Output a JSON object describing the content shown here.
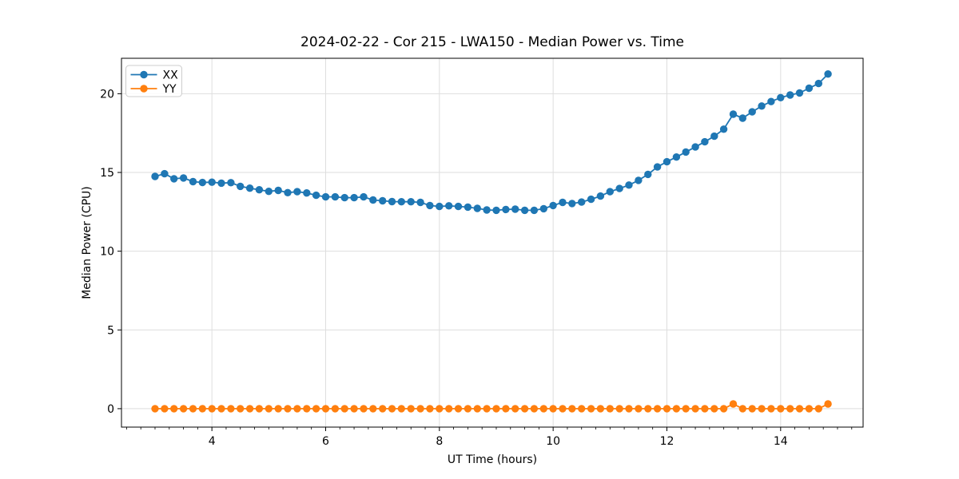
{
  "chart_data": {
    "type": "line",
    "title": "2024-02-22 - Cor 215 - LWA150 - Median Power vs. Time",
    "xlabel": "UT Time (hours)",
    "ylabel": "Median Power (CPU)",
    "xlim": [
      2.41,
      15.45
    ],
    "ylim": [
      -1.17,
      22.25
    ],
    "x_major_ticks": [
      4,
      6,
      8,
      10,
      12,
      14
    ],
    "x_minor_tick_step": 0.25,
    "y_major_ticks": [
      0,
      5,
      10,
      15,
      20
    ],
    "grid": "major",
    "grid_color": "#dedede",
    "legend_position": "upper-left",
    "x": [
      3.0,
      3.167,
      3.333,
      3.5,
      3.667,
      3.833,
      4.0,
      4.167,
      4.333,
      4.5,
      4.667,
      4.833,
      5.0,
      5.167,
      5.333,
      5.5,
      5.667,
      5.833,
      6.0,
      6.167,
      6.333,
      6.5,
      6.667,
      6.833,
      7.0,
      7.167,
      7.333,
      7.5,
      7.667,
      7.833,
      8.0,
      8.167,
      8.333,
      8.5,
      8.667,
      8.833,
      9.0,
      9.167,
      9.333,
      9.5,
      9.667,
      9.833,
      10.0,
      10.167,
      10.333,
      10.5,
      10.667,
      10.833,
      11.0,
      11.167,
      11.333,
      11.5,
      11.667,
      11.833,
      12.0,
      12.167,
      12.333,
      12.5,
      12.667,
      12.833,
      13.0,
      13.167,
      13.333,
      13.5,
      13.667,
      13.833,
      14.0,
      14.167,
      14.333,
      14.5,
      14.667,
      14.833
    ],
    "series": [
      {
        "name": "XX",
        "color": "#1f77b4",
        "values": [
          14.75,
          14.92,
          14.6,
          14.65,
          14.42,
          14.36,
          14.38,
          14.32,
          14.35,
          14.12,
          14.0,
          13.9,
          13.8,
          13.86,
          13.72,
          13.78,
          13.7,
          13.55,
          13.45,
          13.45,
          13.4,
          13.4,
          13.45,
          13.25,
          13.2,
          13.15,
          13.14,
          13.14,
          13.1,
          12.9,
          12.84,
          12.88,
          12.84,
          12.8,
          12.72,
          12.62,
          12.6,
          12.65,
          12.67,
          12.6,
          12.6,
          12.7,
          12.9,
          13.1,
          13.03,
          13.12,
          13.3,
          13.5,
          13.78,
          13.98,
          14.2,
          14.5,
          14.88,
          15.35,
          15.68,
          15.98,
          16.3,
          16.62,
          16.95,
          17.3,
          17.75,
          18.7,
          18.45,
          18.85,
          19.22,
          19.5,
          19.75,
          19.92,
          20.05,
          20.35,
          20.65,
          21.25
        ]
      },
      {
        "name": "YY",
        "color": "#ff7f0e",
        "values": [
          0,
          0,
          0,
          0,
          0,
          0,
          0,
          0,
          0,
          0,
          0,
          0,
          0,
          0,
          0,
          0,
          0,
          0,
          0,
          0,
          0,
          0,
          0,
          0,
          0,
          0,
          0,
          0,
          0,
          0,
          0,
          0,
          0,
          0,
          0,
          0,
          0,
          0,
          0,
          0,
          0,
          0,
          0,
          0,
          0,
          0,
          0,
          0,
          0,
          0,
          0,
          0,
          0,
          0,
          0,
          0,
          0,
          0,
          0,
          0,
          0,
          0.3,
          0,
          0,
          0,
          0,
          0,
          0,
          0,
          0,
          0,
          0.3
        ]
      }
    ]
  },
  "styles": {
    "background": "#ffffff",
    "spine_color": "#000000",
    "text_color": "#000000",
    "legend_border": "#cccccc"
  }
}
